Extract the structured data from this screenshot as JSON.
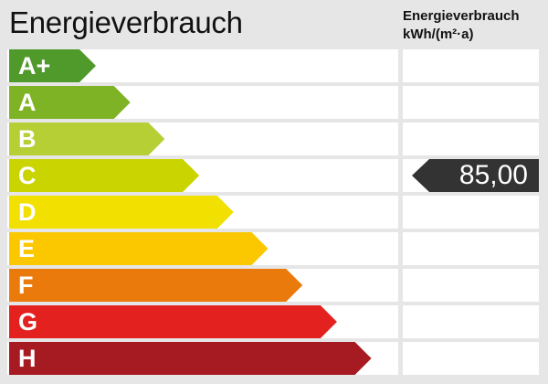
{
  "title": "Energieverbrauch",
  "unit_header": {
    "line1": "Energieverbrauch",
    "line2": "kWh/(m²·a)"
  },
  "chart_data": {
    "type": "bar",
    "categories": [
      "A+",
      "A",
      "B",
      "C",
      "D",
      "E",
      "F",
      "G",
      "H"
    ],
    "colors": [
      "#4f9a2a",
      "#7fb326",
      "#b5cf34",
      "#cad400",
      "#f1e000",
      "#fbc800",
      "#eb7a0c",
      "#e3211e",
      "#a61b22"
    ],
    "value": 85.0,
    "value_label": "85,00",
    "value_class": "C",
    "marker_color": "#333333"
  }
}
